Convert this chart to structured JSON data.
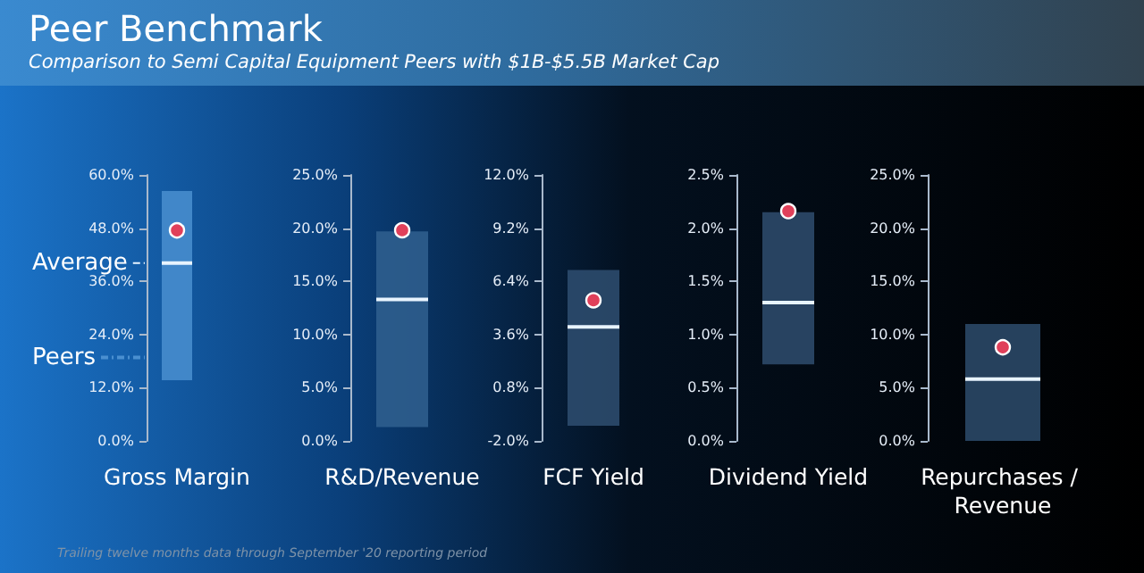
{
  "chart_data": [
    {
      "type": "bar",
      "title": "Peer Benchmark",
      "subtitle": "Comparison to Semi Capital Equipment Peers with $1B-$5.5B Market Cap",
      "annotations": [
        "Trailing twelve months data through September '20 reporting period"
      ],
      "categories": [
        "Gross Margin"
      ],
      "series": [
        {
          "name": "Peers",
          "color": "#4a8fd0",
          "base": [
            13.7
          ],
          "values": [
            42.7
          ]
        },
        {
          "type": "scatter",
          "x": [
            "Gross Margin"
          ],
          "color": "#e0405a",
          "values": [
            47.5
          ]
        }
      ],
      "ylim": [
        0,
        60
      ],
      "yticks": [
        {
          "value": 0,
          "label": "0.0%"
        },
        {
          "value": 12,
          "label": "12.0%"
        },
        {
          "value": 24,
          "label": "24.0%"
        },
        {
          "value": 36,
          "label": "36.0%"
        },
        {
          "value": 48,
          "label": "48.0%"
        },
        {
          "value": 60,
          "label": "60.0%"
        }
      ],
      "ref_lines": [
        {
          "axis": "y",
          "value": 40.1,
          "label": "Average",
          "color": "#e8f4ff"
        }
      ],
      "marker": "circle"
    },
    {
      "type": "bar",
      "categories": [
        "R&D/Revenue"
      ],
      "series": [
        {
          "color": "#30608f",
          "base": [
            1.3
          ],
          "values": [
            18.4
          ]
        },
        {
          "type": "scatter",
          "x": [
            "R&D/Revenue"
          ],
          "color": "#e0405a",
          "values": [
            19.8
          ]
        }
      ],
      "ylim": [
        0,
        25
      ],
      "yticks": [
        {
          "value": 0,
          "label": "0.0%"
        },
        {
          "value": 5,
          "label": "5.0%"
        },
        {
          "value": 10,
          "label": "10.0%"
        },
        {
          "value": 15,
          "label": "15.0%"
        },
        {
          "value": 20,
          "label": "20.0%"
        },
        {
          "value": 25,
          "label": "25.0%"
        }
      ],
      "ref_lines": [
        {
          "axis": "y",
          "value": 13.3,
          "color": "#e8f4ff"
        }
      ],
      "marker": "circle"
    },
    {
      "type": "bar",
      "categories": [
        "FCF Yield"
      ],
      "series": [
        {
          "color": "#2f4f71",
          "base": [
            -1.2
          ],
          "values": [
            8.2
          ]
        },
        {
          "type": "scatter",
          "x": [
            "FCF Yield"
          ],
          "color": "#e0405a",
          "values": [
            5.4
          ]
        }
      ],
      "ylim": [
        -2,
        12
      ],
      "yticks": [
        {
          "value": -2,
          "label": "-2.0%"
        },
        {
          "value": 0.8,
          "label": "0.8%"
        },
        {
          "value": 3.6,
          "label": "3.6%"
        },
        {
          "value": 6.4,
          "label": "6.4%"
        },
        {
          "value": 9.2,
          "label": "9.2%"
        },
        {
          "value": 12,
          "label": "12.0%"
        }
      ],
      "ref_lines": [
        {
          "axis": "y",
          "value": 4.0,
          "color": "#e8f4ff"
        }
      ],
      "marker": "circle"
    },
    {
      "type": "bar",
      "categories": [
        "Dividend Yield"
      ],
      "series": [
        {
          "color": "#2f4e6e",
          "base": [
            0.72
          ],
          "values": [
            1.43
          ]
        },
        {
          "type": "scatter",
          "x": [
            "Dividend Yield"
          ],
          "color": "#e0405a",
          "values": [
            2.16
          ]
        }
      ],
      "ylim": [
        0,
        2.5
      ],
      "yticks": [
        {
          "value": 0,
          "label": "0.0%"
        },
        {
          "value": 0.5,
          "label": "0.5%"
        },
        {
          "value": 1,
          "label": "1.0%"
        },
        {
          "value": 1.5,
          "label": "1.5%"
        },
        {
          "value": 2,
          "label": "2.0%"
        },
        {
          "value": 2.5,
          "label": "2.5%"
        }
      ],
      "ref_lines": [
        {
          "axis": "y",
          "value": 1.3,
          "color": "#e8f4ff"
        }
      ],
      "marker": "circle"
    },
    {
      "type": "bar",
      "categories": [
        "Repurchases / Revenue"
      ],
      "series": [
        {
          "color": "#2d4c6c",
          "base": [
            0
          ],
          "values": [
            11.0
          ]
        },
        {
          "type": "scatter",
          "x": [
            "Repurchases / Revenue"
          ],
          "color": "#e0405a",
          "values": [
            8.8
          ]
        }
      ],
      "ylim": [
        0,
        25
      ],
      "yticks": [
        {
          "value": 0,
          "label": "0.0%"
        },
        {
          "value": 5,
          "label": "5.0%"
        },
        {
          "value": 10,
          "label": "10.0%"
        },
        {
          "value": 15,
          "label": "15.0%"
        },
        {
          "value": 20,
          "label": "20.0%"
        },
        {
          "value": 25,
          "label": "25.0%"
        }
      ],
      "ref_lines": [
        {
          "axis": "y",
          "value": 5.8,
          "color": "#e8f4ff"
        }
      ],
      "marker": "circle"
    }
  ]
}
